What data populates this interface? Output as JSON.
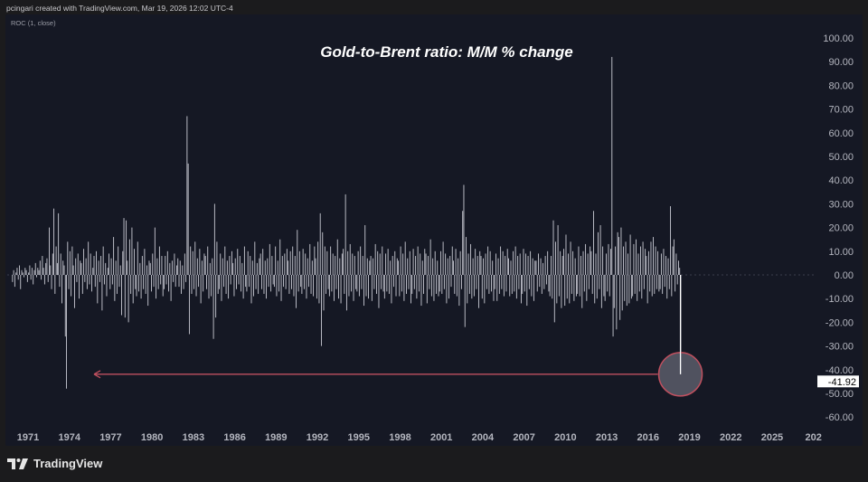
{
  "header": {
    "credit": "pcingari created with TradingView.com, Mar 19, 2026 12:02 UTC-4",
    "indicator": "ROC (1, close)"
  },
  "footer": {
    "brand": "TradingView"
  },
  "colors": {
    "bars": "#c9cad3",
    "arrow": "#c0505f",
    "panel": "#151824"
  },
  "chart_data": {
    "type": "bar",
    "title": "Gold-to-Brent ratio: M/M % change",
    "xlabel": "",
    "ylabel": "",
    "ylim": [
      -65,
      105
    ],
    "y_ticks": [
      "100.00",
      "90.00",
      "80.00",
      "70.00",
      "60.00",
      "50.00",
      "40.00",
      "30.00",
      "20.00",
      "10.00",
      "0.00",
      "-10.00",
      "-20.00",
      "-30.00",
      "-40.00",
      "-50.00",
      "-60.00"
    ],
    "x_ticks": [
      "1971",
      "1974",
      "1977",
      "1980",
      "1983",
      "1986",
      "1989",
      "1992",
      "1995",
      "1998",
      "2001",
      "2004",
      "2007",
      "2010",
      "2013",
      "2016",
      "2019",
      "2022",
      "2025",
      "202"
    ],
    "start": "1970-01",
    "frequency": "monthly",
    "last_value_label": "-41.92",
    "values": [
      -3,
      2,
      -5,
      1,
      3,
      -2,
      4,
      -6,
      2,
      1,
      -1,
      3,
      2,
      -3,
      1,
      4,
      -2,
      3,
      -4,
      2,
      5,
      -1,
      3,
      2,
      6,
      -2,
      8,
      3,
      -4,
      5,
      7,
      -3,
      20,
      4,
      -6,
      9,
      28,
      -8,
      12,
      5,
      26,
      -5,
      9,
      -12,
      6,
      4,
      -26,
      -48,
      14,
      -6,
      10,
      -9,
      12,
      4,
      -14,
      7,
      -3,
      9,
      -10,
      6,
      5,
      -8,
      11,
      -3,
      7,
      -6,
      14,
      -4,
      9,
      -7,
      3,
      8,
      -5,
      10,
      -12,
      6,
      -3,
      8,
      -15,
      12,
      -4,
      5,
      -9,
      3,
      9,
      -6,
      7,
      -4,
      16,
      -11,
      6,
      -8,
      12,
      -5,
      4,
      -17,
      10,
      24,
      -18,
      23,
      6,
      -20,
      15,
      -8,
      20,
      -12,
      11,
      -6,
      -9,
      14,
      -7,
      5,
      -10,
      8,
      -6,
      11,
      -8,
      4,
      -13,
      6,
      5,
      -7,
      9,
      -5,
      20,
      -10,
      7,
      -6,
      12,
      -4,
      8,
      -9,
      -6,
      8,
      -4,
      10,
      -7,
      5,
      -11,
      6,
      -3,
      9,
      -5,
      4,
      7,
      -5,
      6,
      -8,
      4,
      -6,
      9,
      -3,
      67,
      47,
      -25,
      12,
      -8,
      10,
      -6,
      14,
      -9,
      7,
      -5,
      11,
      -12,
      6,
      -7,
      9,
      8,
      -6,
      12,
      -10,
      5,
      -9,
      7,
      -27,
      30,
      -18,
      14,
      -8,
      -6,
      9,
      -11,
      7,
      -5,
      12,
      -8,
      6,
      -10,
      8,
      -4,
      10,
      5,
      -9,
      7,
      -6,
      11,
      -4,
      8,
      -7,
      5,
      -10,
      12,
      -5,
      -7,
      10,
      -5,
      8,
      -12,
      6,
      -9,
      14,
      -6,
      5,
      -8,
      7,
      9,
      -6,
      11,
      -8,
      6,
      -10,
      7,
      -5,
      13,
      -7,
      8,
      -4,
      -5,
      12,
      -9,
      6,
      -7,
      15,
      -11,
      8,
      -5,
      9,
      -6,
      11,
      6,
      -8,
      10,
      -6,
      12,
      -9,
      8,
      -14,
      19,
      -7,
      10,
      -5,
      -8,
      11,
      -6,
      9,
      -10,
      7,
      -5,
      13,
      -8,
      6,
      -9,
      12,
      7,
      -10,
      14,
      -12,
      26,
      -30,
      18,
      -15,
      12,
      -8,
      10,
      -6,
      -9,
      12,
      -7,
      9,
      -11,
      8,
      -6,
      15,
      -10,
      7,
      -12,
      9,
      11,
      -8,
      34,
      -15,
      10,
      -9,
      13,
      -7,
      9,
      -11,
      8,
      -6,
      -7,
      10,
      -9,
      12,
      -6,
      8,
      -13,
      21,
      -9,
      7,
      -10,
      6,
      8,
      -11,
      7,
      -6,
      13,
      -8,
      10,
      -14,
      9,
      -6,
      12,
      -7,
      -10,
      9,
      -7,
      11,
      -8,
      6,
      -12,
      8,
      -5,
      10,
      -9,
      7,
      6,
      -9,
      12,
      -7,
      9,
      -11,
      14,
      -8,
      7,
      -6,
      10,
      -12,
      -8,
      11,
      -6,
      8,
      -10,
      12,
      -7,
      9,
      -13,
      6,
      -8,
      11,
      9,
      -12,
      8,
      -6,
      15,
      -9,
      7,
      -11,
      10,
      -8,
      6,
      -9,
      -7,
      10,
      -8,
      14,
      -6,
      9,
      -12,
      7,
      -10,
      8,
      -5,
      12,
      6,
      -8,
      11,
      -9,
      7,
      -13,
      10,
      -6,
      27,
      38,
      -22,
      16,
      -12,
      9,
      -8,
      13,
      -10,
      7,
      -9,
      11,
      -6,
      8,
      -14,
      10,
      8,
      -10,
      7,
      -12,
      9,
      -6,
      12,
      -8,
      10,
      -7,
      6,
      -11,
      -6,
      9,
      -11,
      7,
      -8,
      12,
      -6,
      10,
      -9,
      8,
      -7,
      11,
      7,
      -9,
      6,
      -8,
      10,
      -7,
      12,
      -10,
      8,
      -6,
      9,
      -12,
      -8,
      11,
      -7,
      9,
      -13,
      8,
      -6,
      10,
      -9,
      7,
      -11,
      6,
      6,
      -7,
      9,
      -5,
      7,
      -8,
      5,
      -6,
      8,
      -4,
      10,
      -7,
      -9,
      8,
      -10,
      23,
      -20,
      14,
      -12,
      21,
      -9,
      10,
      -14,
      8,
      11,
      -13,
      17,
      -10,
      9,
      -12,
      14,
      -8,
      10,
      -11,
      7,
      -9,
      -8,
      12,
      -9,
      8,
      -14,
      10,
      -7,
      13,
      -11,
      9,
      -6,
      12,
      10,
      -8,
      27,
      -12,
      9,
      -10,
      18,
      -6,
      21,
      -14,
      12,
      -9,
      -11,
      9,
      -7,
      13,
      -9,
      11,
      92,
      -26,
      -14,
      12,
      -23,
      18,
      16,
      -19,
      20,
      -15,
      12,
      -11,
      14,
      -13,
      9,
      -12,
      17,
      -10,
      -9,
      13,
      -8,
      15,
      -11,
      9,
      -7,
      12,
      -10,
      14,
      -6,
      11,
      8,
      -12,
      10,
      -7,
      14,
      -9,
      16,
      -8,
      12,
      -6,
      10,
      -7,
      -6,
      9,
      -8,
      11,
      -5,
      8,
      -10,
      7,
      -6,
      29,
      -9,
      12,
      15,
      -7,
      9,
      -4,
      6,
      3,
      -41.92
    ]
  }
}
